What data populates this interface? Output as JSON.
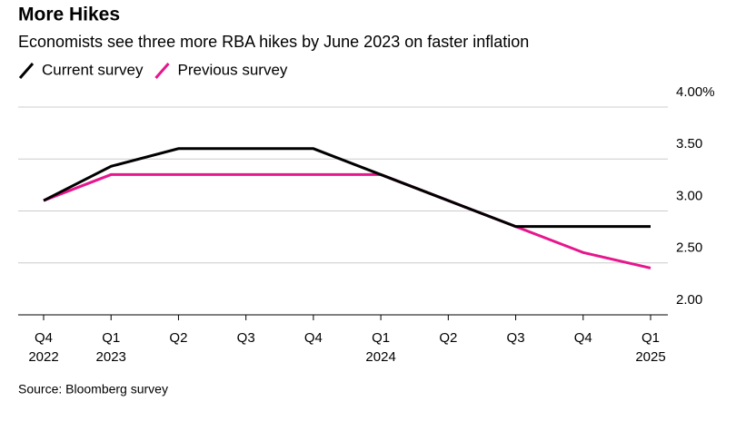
{
  "chart_data": {
    "type": "line",
    "title": "More Hikes",
    "subtitle": "Economists see three more RBA hikes by June 2023 on faster inflation",
    "source": "Source: Bloomberg survey",
    "categories": [
      "Q4",
      "Q1",
      "Q2",
      "Q3",
      "Q4",
      "Q1",
      "Q2",
      "Q3",
      "Q4",
      "Q1"
    ],
    "category_years": [
      "2022",
      "2023",
      null,
      null,
      null,
      "2024",
      null,
      null,
      null,
      "2025"
    ],
    "series": [
      {
        "name": "Current survey",
        "color": "#000000",
        "values": [
          3.1,
          3.43,
          3.6,
          3.6,
          3.6,
          3.35,
          3.1,
          2.85,
          2.85,
          2.85
        ]
      },
      {
        "name": "Previous survey",
        "color": "#e6168c",
        "values": [
          3.1,
          3.35,
          3.35,
          3.35,
          3.35,
          3.35,
          3.1,
          2.85,
          2.6,
          2.45
        ]
      }
    ],
    "ylim": [
      2,
      4
    ],
    "yticks": [
      {
        "value": 2,
        "label": "2.00"
      },
      {
        "value": 2.5,
        "label": "2.50"
      },
      {
        "value": 3,
        "label": "3.00"
      },
      {
        "value": 3.5,
        "label": "3.50"
      },
      {
        "value": 4,
        "label": "4.00%"
      }
    ],
    "grid": true
  }
}
